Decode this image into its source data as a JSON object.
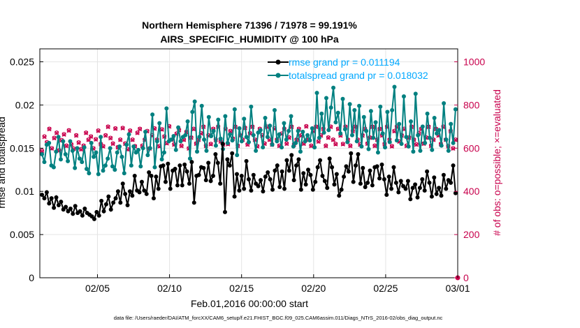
{
  "chart_data": {
    "type": "line",
    "title": "Northern Hemisphere 71396 / 71978 = 99.191%",
    "subtitle": "AIRS_SPECIFIC_HUMIDITY @ 100 hPa",
    "xlabel": "Feb.01,2016 00:00:00 start",
    "ylabel": "rmse and totalspread",
    "ylabel_right": "# of obs: o=possible; ×=evaluated",
    "footer": "data file: /Users/raeder/DAI/ATM_forcXX/CAM6_setup/f.e21.FHIST_BGC.f09_025.CAM6assim.011/Diags_NTrS_2016-02/obs_diag_output.nc",
    "x_tick_labels": [
      "02/05",
      "02/10",
      "02/15",
      "02/20",
      "02/25",
      "03/01"
    ],
    "x_tick_positions": [
      5,
      10,
      15,
      20,
      25,
      30
    ],
    "xlim": [
      1,
      30
    ],
    "ylim": [
      0,
      0.0265
    ],
    "y_ticks": [
      0,
      0.005,
      0.01,
      0.015,
      0.02,
      0.025
    ],
    "y_tick_labels": [
      "0",
      "0.005",
      "0.01",
      "0.015",
      "0.02",
      "0.025"
    ],
    "ylim_right": [
      0,
      1060
    ],
    "y2_ticks": [
      0,
      200,
      400,
      600,
      800,
      1000
    ],
    "y2_tick_labels": [
      "0",
      "200",
      "400",
      "600",
      "800",
      "1000"
    ],
    "grid": true,
    "legend": [
      {
        "label": "rmse grand pr = 0.011194",
        "color": "#000000",
        "series": "rmse"
      },
      {
        "label": "totalspread grand pr = 0.018032",
        "color": "#008080",
        "series": "totalspread"
      }
    ],
    "series": [
      {
        "name": "rmse",
        "color": "#000000",
        "axis": "left",
        "values": [
          0.0096,
          0.0092,
          0.0099,
          0.0086,
          0.0092,
          0.0081,
          0.0093,
          0.0084,
          0.0088,
          0.0079,
          0.0082,
          0.0077,
          0.008,
          0.0074,
          0.0083,
          0.0075,
          0.0077,
          0.0072,
          0.008,
          0.0075,
          0.0073,
          0.0071,
          0.0068,
          0.0076,
          0.0072,
          0.0089,
          0.0077,
          0.0085,
          0.0094,
          0.0079,
          0.0087,
          0.0092,
          0.01,
          0.0087,
          0.0109,
          0.0097,
          0.0084,
          0.01,
          0.0095,
          0.0118,
          0.0101,
          0.0099,
          0.0111,
          0.0101,
          0.0097,
          0.0122,
          0.0118,
          0.0092,
          0.0117,
          0.0103,
          0.0129,
          0.013,
          0.0111,
          0.0132,
          0.0103,
          0.0124,
          0.0126,
          0.0107,
          0.013,
          0.0107,
          0.0131,
          0.0123,
          0.0109,
          0.0134,
          0.0087,
          0.0118,
          0.0119,
          0.0128,
          0.0127,
          0.0113,
          0.0133,
          0.0112,
          0.0118,
          0.0143,
          0.0133,
          0.0109,
          0.0155,
          0.0076,
          0.0137,
          0.013,
          0.0144,
          0.0094,
          0.012,
          0.0101,
          0.0118,
          0.0103,
          0.0135,
          0.0114,
          0.0101,
          0.0119,
          0.0109,
          0.0106,
          0.0113,
          0.01,
          0.0117,
          0.0122,
          0.0114,
          0.0102,
          0.0124,
          0.013,
          0.0105,
          0.0123,
          0.0103,
          0.0136,
          0.0124,
          0.0142,
          0.0113,
          0.013,
          0.0137,
          0.0102,
          0.0121,
          0.0108,
          0.0125,
          0.0119,
          0.0102,
          0.0111,
          0.0128,
          0.0136,
          0.0118,
          0.0112,
          0.0104,
          0.0138,
          0.0128,
          0.0108,
          0.012,
          0.0095,
          0.0102,
          0.0117,
          0.0129,
          0.0123,
          0.0144,
          0.0111,
          0.013,
          0.0143,
          0.0109,
          0.0127,
          0.0105,
          0.011,
          0.0124,
          0.0107,
          0.0128,
          0.0129,
          0.0115,
          0.0131,
          0.0114,
          0.0096,
          0.0117,
          0.0103,
          0.0128,
          0.011,
          0.0099,
          0.0112,
          0.0106,
          0.0103,
          0.0112,
          0.0091,
          0.0104,
          0.0108,
          0.0093,
          0.0104,
          0.0114,
          0.0101,
          0.0123,
          0.011,
          0.0094,
          0.0116,
          0.0097,
          0.0104,
          0.0095,
          0.0119,
          0.0103,
          0.0113,
          0.011,
          0.013,
          0.0098
        ]
      },
      {
        "name": "totalspread",
        "color": "#008080",
        "axis": "left",
        "values": [
          0.0143,
          0.0134,
          0.0154,
          0.0156,
          0.013,
          0.0128,
          0.0146,
          0.0163,
          0.0137,
          0.0158,
          0.0143,
          0.0135,
          0.0158,
          0.0147,
          0.0127,
          0.015,
          0.0138,
          0.0134,
          0.0151,
          0.0126,
          0.0121,
          0.0156,
          0.014,
          0.0145,
          0.012,
          0.0163,
          0.0124,
          0.013,
          0.0138,
          0.015,
          0.0129,
          0.0125,
          0.0145,
          0.0152,
          0.014,
          0.0121,
          0.0154,
          0.0166,
          0.013,
          0.0152,
          0.0145,
          0.0148,
          0.0129,
          0.015,
          0.0169,
          0.0142,
          0.015,
          0.0189,
          0.0128,
          0.0158,
          0.0179,
          0.0137,
          0.0145,
          0.0196,
          0.0158,
          0.016,
          0.0164,
          0.0148,
          0.0174,
          0.0158,
          0.0163,
          0.0165,
          0.0181,
          0.0138,
          0.0192,
          0.0204,
          0.0146,
          0.0163,
          0.0199,
          0.016,
          0.0147,
          0.0186,
          0.0164,
          0.017,
          0.0153,
          0.0183,
          0.0161,
          0.0149,
          0.0187,
          0.0156,
          0.0166,
          0.0159,
          0.0195,
          0.0142,
          0.0173,
          0.0158,
          0.0184,
          0.0163,
          0.0157,
          0.0198,
          0.0165,
          0.0147,
          0.0168,
          0.0171,
          0.0151,
          0.0185,
          0.0163,
          0.0176,
          0.0154,
          0.0194,
          0.0158,
          0.0166,
          0.0151,
          0.0179,
          0.016,
          0.017,
          0.0187,
          0.0152,
          0.0156,
          0.017,
          0.0146,
          0.0169,
          0.0158,
          0.0165,
          0.0159,
          0.0173,
          0.0151,
          0.0214,
          0.0162,
          0.019,
          0.0168,
          0.0208,
          0.0171,
          0.0197,
          0.022,
          0.018,
          0.0191,
          0.0167,
          0.0207,
          0.0172,
          0.0157,
          0.0201,
          0.0165,
          0.0194,
          0.0158,
          0.0199,
          0.0152,
          0.0186,
          0.017,
          0.0149,
          0.0193,
          0.0162,
          0.018,
          0.0145,
          0.0198,
          0.0167,
          0.0151,
          0.0192,
          0.0157,
          0.0194,
          0.0221,
          0.0159,
          0.0178,
          0.0155,
          0.021,
          0.0163,
          0.0152,
          0.0181,
          0.0146,
          0.0213,
          0.0165,
          0.0147,
          0.0175,
          0.0156,
          0.019,
          0.0162,
          0.0148,
          0.0185,
          0.0167,
          0.0171,
          0.0153,
          0.0202,
          0.016,
          0.0147,
          0.0178,
          0.0156,
          0.0195
        ]
      },
      {
        "name": "obs_possible",
        "color": "#c8004c",
        "axis": "right",
        "marker": "circle",
        "values": [
          588,
          655,
          628,
          690,
          600,
          648,
          672,
          590,
          638,
          665,
          612,
          683,
          618,
          598,
          660,
          627,
          596,
          612,
          672,
          640,
          655,
          600,
          642,
          682,
          620,
          610,
          660,
          700,
          648,
          622,
          692,
          605,
          640,
          694,
          622,
          596,
          682,
          640,
          610,
          672,
          690,
          612,
          640,
          680,
          600,
          660,
          692,
          640,
          610,
          688,
          655,
          624,
          702,
          640,
          618,
          668,
          685,
          612,
          640,
          676,
          600,
          650,
          690,
          622,
          640,
          670,
          700,
          612,
          660,
          620,
          690,
          640,
          700,
          632,
          618,
          690,
          620,
          680,
          645,
          700,
          612,
          660,
          640,
          695,
          618,
          670,
          700,
          640,
          610,
          690,
          660,
          622,
          700,
          640,
          618,
          692,
          640,
          612,
          668,
          690,
          622,
          650,
          700,
          618,
          640,
          690,
          660,
          622,
          702,
          640,
          612,
          680,
          700,
          632,
          660,
          690,
          612,
          650,
          700,
          640,
          620,
          690,
          660,
          620,
          700,
          640,
          612,
          680,
          700,
          640,
          618,
          660,
          690,
          622,
          650,
          700,
          612,
          640,
          690,
          660,
          620,
          700,
          640,
          610,
          680,
          700,
          632,
          660,
          690,
          612,
          650,
          700,
          640,
          618,
          670,
          690,
          622,
          650,
          700,
          612,
          640,
          690,
          660,
          620,
          700,
          640,
          610,
          680,
          600,
          640
        ]
      },
      {
        "name": "obs_evaluated",
        "color": "#c8004c",
        "axis": "right",
        "marker": "x",
        "values": [
          586,
          652,
          626,
          688,
          598,
          646,
          670,
          588,
          636,
          663,
          610,
          681,
          616,
          596,
          658,
          625,
          594,
          610,
          670,
          638,
          653,
          598,
          640,
          680,
          618,
          608,
          658,
          698,
          646,
          620,
          690,
          603,
          638,
          692,
          620,
          594,
          680,
          638,
          608,
          670,
          688,
          610,
          638,
          678,
          598,
          658,
          690,
          638,
          608,
          686,
          653,
          622,
          700,
          638,
          616,
          666,
          683,
          610,
          638,
          674,
          598,
          648,
          688,
          620,
          638,
          668,
          698,
          610,
          658,
          618,
          688,
          638,
          698,
          630,
          616,
          688,
          618,
          678,
          643,
          698,
          610,
          658,
          638,
          693,
          616,
          668,
          698,
          638,
          608,
          688,
          658,
          620,
          698,
          638,
          616,
          690,
          638,
          610,
          666,
          688,
          620,
          648,
          698,
          616,
          638,
          688,
          658,
          620,
          700,
          638,
          610,
          678,
          698,
          630,
          658,
          688,
          610,
          648,
          698,
          638,
          618,
          688,
          658,
          618,
          698,
          638,
          610,
          678,
          698,
          638,
          616,
          658,
          688,
          620,
          648,
          698,
          610,
          638,
          688,
          658,
          618,
          698,
          638,
          608,
          678,
          698,
          630,
          658,
          688,
          610,
          648,
          698,
          638,
          616,
          668,
          688,
          620,
          648,
          698,
          610,
          638,
          688,
          658,
          618,
          698,
          638,
          608,
          678,
          598,
          638
        ]
      }
    ]
  }
}
